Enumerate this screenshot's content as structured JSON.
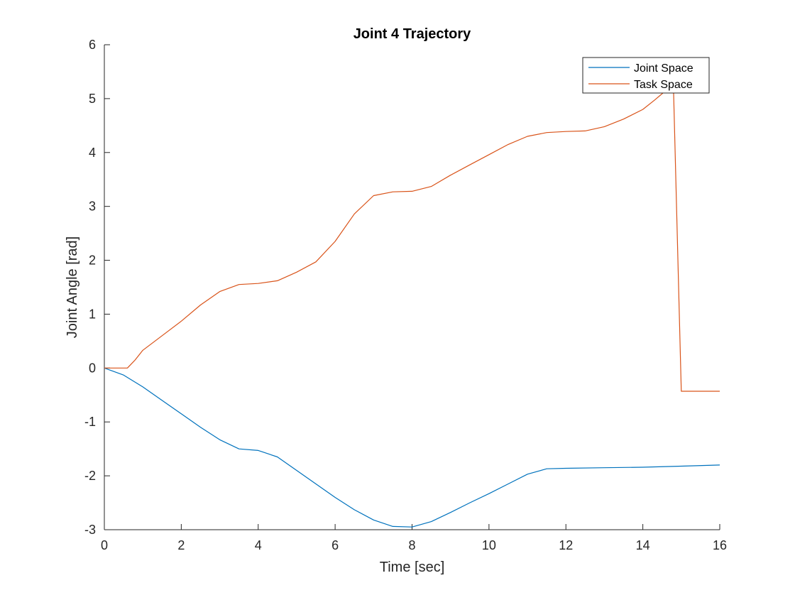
{
  "chart_data": {
    "type": "line",
    "title": "Joint 4 Trajectory",
    "xlabel": "Time [sec]",
    "ylabel": "Joint Angle [rad]",
    "xlim": [
      0,
      16
    ],
    "ylim": [
      -3,
      6
    ],
    "xticks": [
      0,
      2,
      4,
      6,
      8,
      10,
      12,
      14,
      16
    ],
    "yticks": [
      -3,
      -2,
      -1,
      0,
      1,
      2,
      3,
      4,
      5,
      6
    ],
    "grid": false,
    "legend_position": "top-right",
    "series": [
      {
        "name": "Joint Space",
        "color": "#0072BD",
        "x": [
          0,
          0.5,
          1,
          1.5,
          2,
          2.5,
          3,
          3.5,
          4,
          4.5,
          5,
          5.5,
          6,
          6.5,
          7,
          7.5,
          8,
          8.5,
          9,
          9.5,
          10,
          10.5,
          11,
          11.5,
          12,
          13,
          14,
          15,
          16
        ],
        "y": [
          0,
          -0.13,
          -0.35,
          -0.6,
          -0.85,
          -1.1,
          -1.33,
          -1.5,
          -1.53,
          -1.65,
          -1.9,
          -2.15,
          -2.4,
          -2.63,
          -2.82,
          -2.94,
          -2.95,
          -2.85,
          -2.68,
          -2.5,
          -2.33,
          -2.15,
          -1.97,
          -1.87,
          -1.86,
          -1.85,
          -1.84,
          -1.82,
          -1.8
        ]
      },
      {
        "name": "Task Space",
        "color": "#D95319",
        "x": [
          0,
          0.6,
          0.8,
          1,
          1.5,
          2,
          2.5,
          3,
          3.5,
          4,
          4.5,
          5,
          5.5,
          6,
          6.5,
          7,
          7.5,
          8,
          8.5,
          9,
          9.5,
          10,
          10.5,
          11,
          11.5,
          12,
          12.5,
          13,
          13.5,
          14,
          14.3,
          14.6,
          14.8,
          15,
          15.5,
          16
        ],
        "y": [
          0,
          0,
          0.15,
          0.33,
          0.6,
          0.87,
          1.17,
          1.42,
          1.55,
          1.57,
          1.62,
          1.78,
          1.97,
          2.35,
          2.86,
          3.2,
          3.27,
          3.28,
          3.37,
          3.58,
          3.77,
          3.96,
          4.15,
          4.3,
          4.37,
          4.39,
          4.4,
          4.48,
          4.62,
          4.8,
          4.97,
          5.15,
          5.1,
          -0.43,
          -0.43,
          -0.43
        ]
      }
    ]
  }
}
